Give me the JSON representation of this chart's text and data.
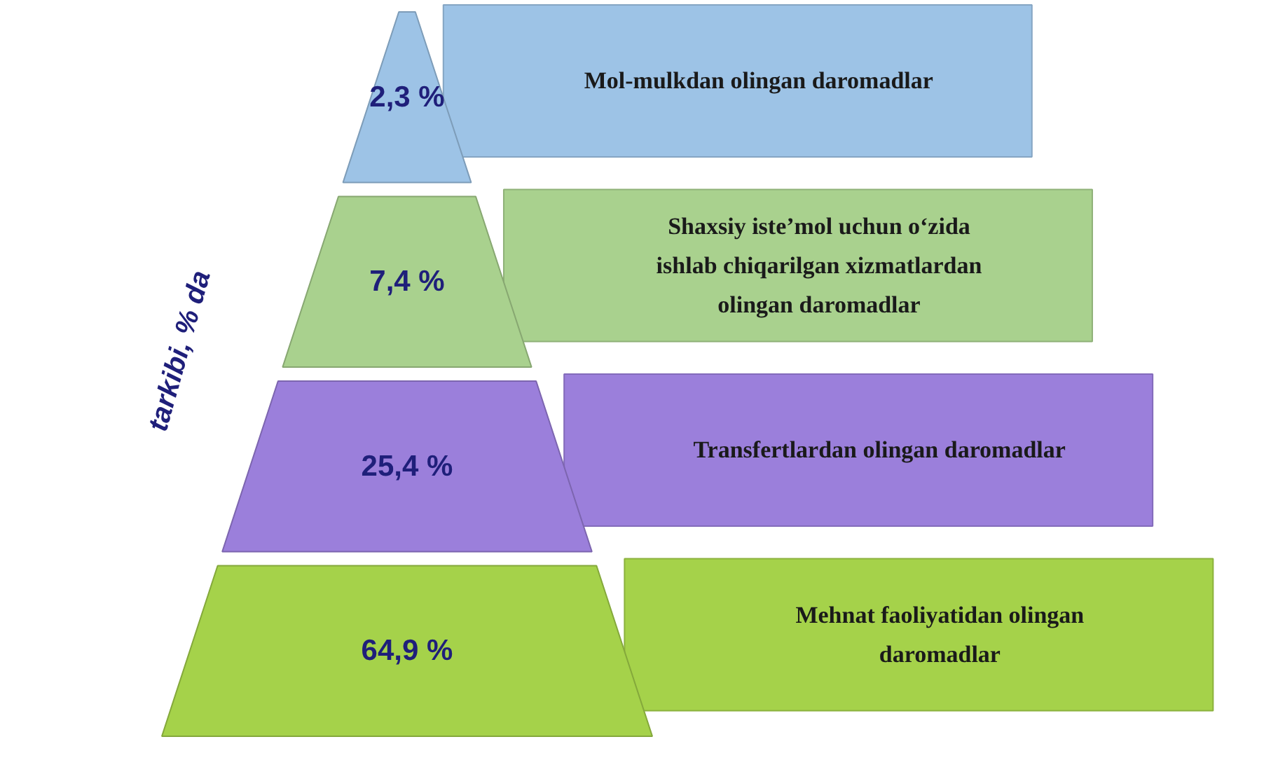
{
  "chart_data": {
    "type": "other",
    "ylabel": "tarkibi, % da",
    "categories": [
      "Mol-mulkdan olingan daromadlar",
      "Shaxsiy iste’mol uchun o‘zida ishlab chiqarilgan xizmatlardan olingan daromadlar",
      "Transfertlardan olingan daromadlar",
      "Mehnat faoliyatidan olingan daromadlar"
    ],
    "values": [
      2.3,
      7.4,
      25.4,
      64.9
    ],
    "value_labels": [
      "2,3 %",
      "7,4 %",
      "25,4 %",
      "64,9 %"
    ],
    "colors": [
      "#9dc3e6",
      "#a9d18e",
      "#9b7fdb",
      "#a5d24a"
    ]
  }
}
